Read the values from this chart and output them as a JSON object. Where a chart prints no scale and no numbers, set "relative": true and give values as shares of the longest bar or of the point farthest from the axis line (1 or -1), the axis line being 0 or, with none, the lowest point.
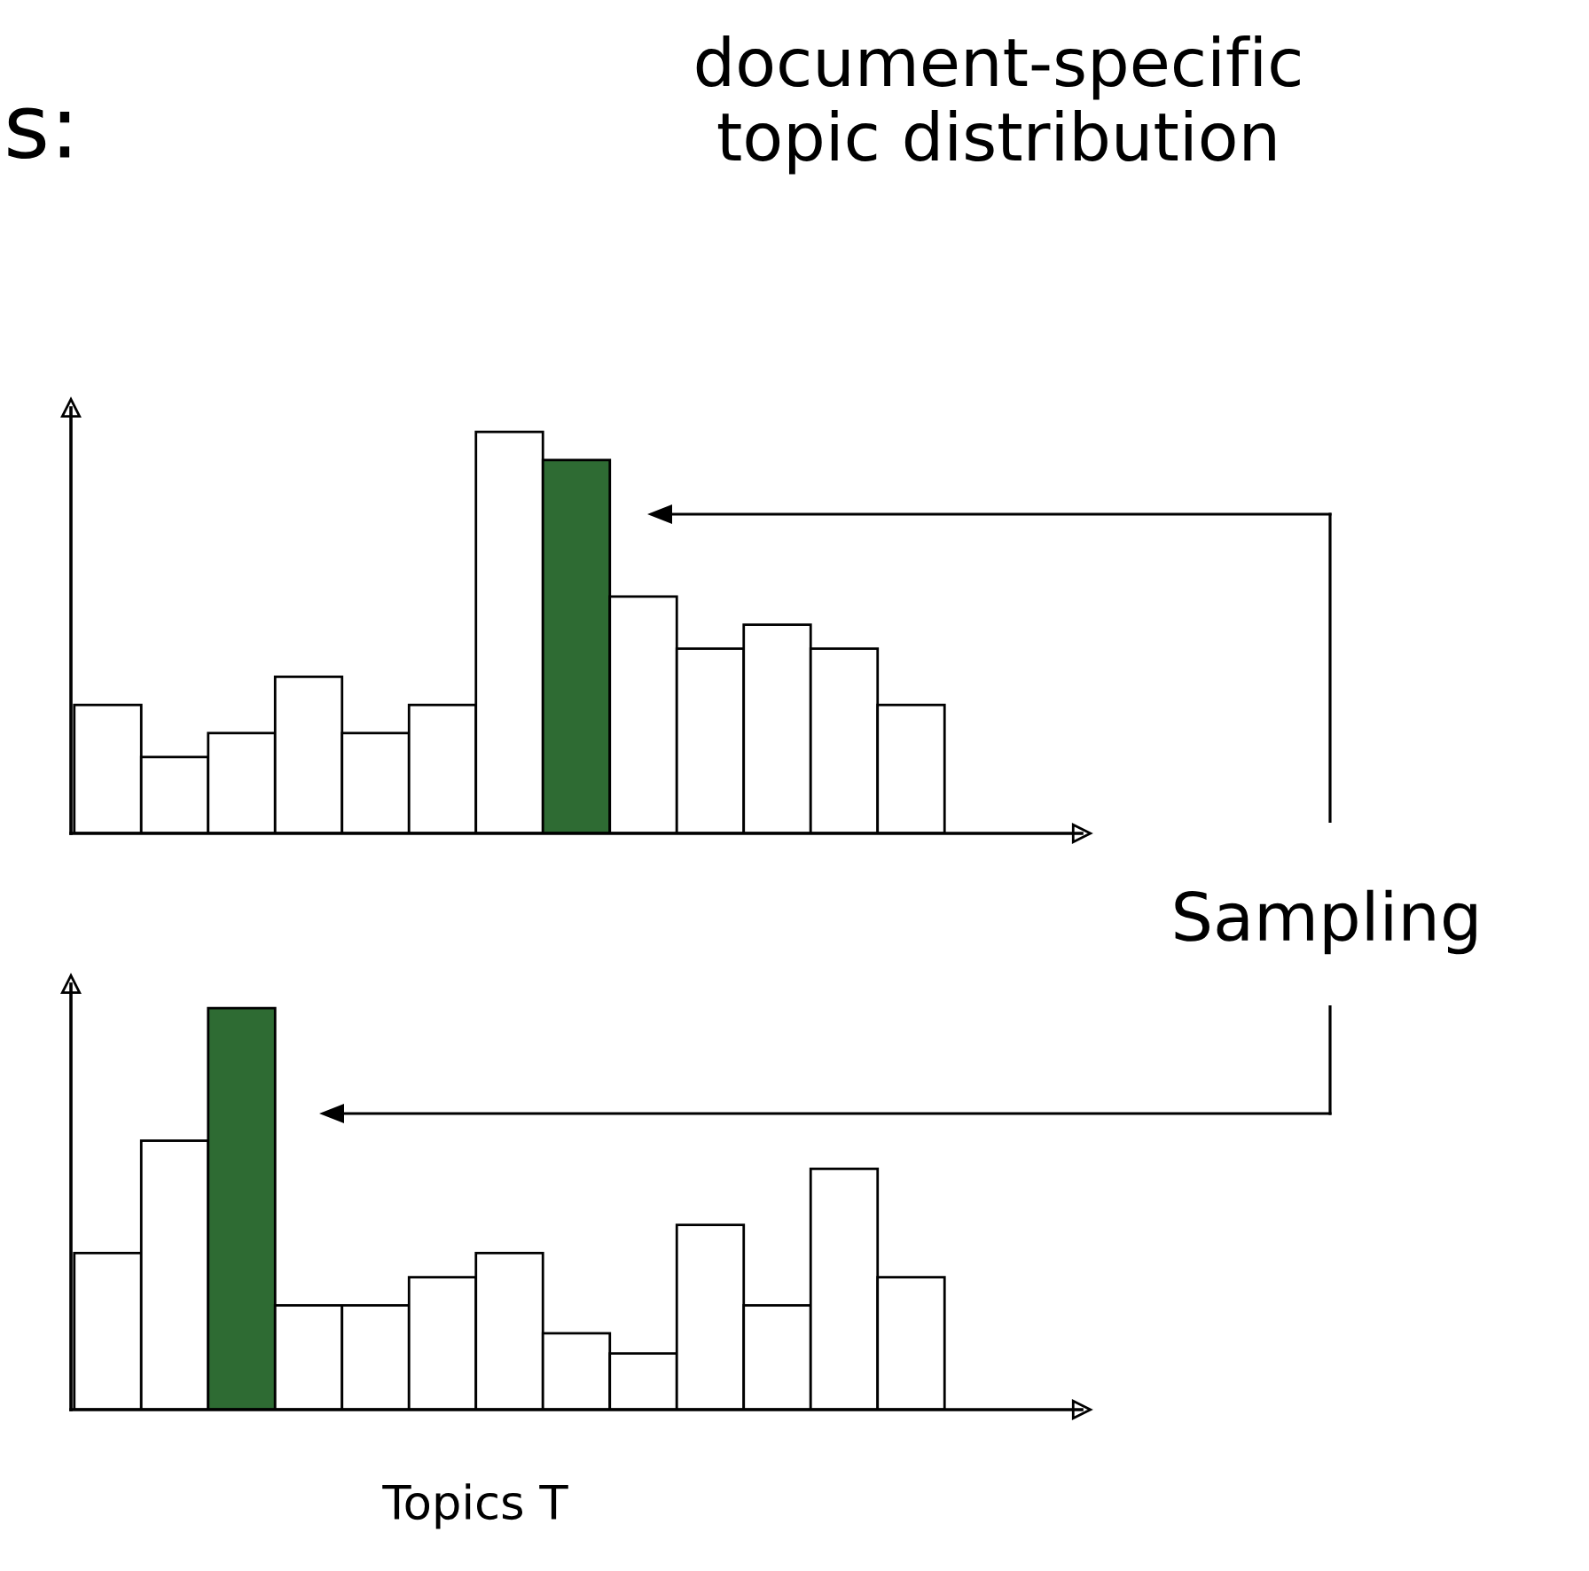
{
  "chart_data": [
    {
      "type": "bar",
      "title": "document-specific\ntopic distribution",
      "relative": true,
      "categories": [
        null,
        null,
        null,
        null,
        null,
        null,
        null,
        null,
        null,
        null,
        null,
        null,
        null
      ],
      "values": [
        0.32,
        0.19,
        0.25,
        0.39,
        0.25,
        0.32,
        1,
        0.93,
        0.59,
        0.46,
        0.52,
        0.46,
        0.32
      ],
      "colors": [
        "#ffffff",
        "#ffffff",
        "#ffffff",
        "#ffffff",
        "#ffffff",
        "#ffffff",
        "#ffffff",
        "#2e6b33",
        "#ffffff",
        "#ffffff",
        "#ffffff",
        "#ffffff",
        "#ffffff"
      ],
      "annotations": [
        "s:",
        "Sampling"
      ],
      "tick_labels": false,
      "grid": false,
      "legend": false
    },
    {
      "type": "bar",
      "xlabel": "Topics T",
      "relative": true,
      "categories": [
        null,
        null,
        null,
        null,
        null,
        null,
        null,
        null,
        null,
        null,
        null,
        null,
        null
      ],
      "values": [
        0.39,
        0.67,
        1,
        0.26,
        0.26,
        0.33,
        0.39,
        0.19,
        0.14,
        0.46,
        0.26,
        0.6,
        0.33
      ],
      "colors": [
        "#ffffff",
        "#ffffff",
        "#2e6b33",
        "#ffffff",
        "#ffffff",
        "#ffffff",
        "#ffffff",
        "#ffffff",
        "#ffffff",
        "#ffffff",
        "#ffffff",
        "#ffffff",
        "#ffffff"
      ],
      "tick_labels": false,
      "grid": false,
      "legend": false
    }
  ]
}
